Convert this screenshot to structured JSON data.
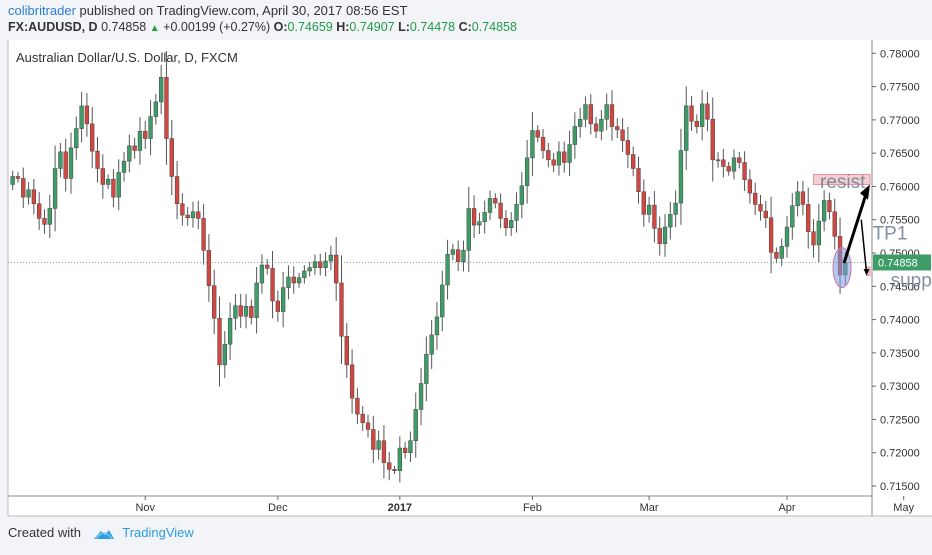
{
  "header": {
    "author": "colibritrader",
    "published_text": "published on TradingView.com, April 30, 2017 08:56 EST",
    "symbol": "FX:AUDUSD, D",
    "last": "0.74858",
    "change": "+0.00199 (+0.27%)",
    "o_label": "O:",
    "o_value": "0.74659",
    "h_label": "H:",
    "h_value": "0.74907",
    "l_label": "L:",
    "l_value": "0.74478",
    "c_label": "C:",
    "c_value": "0.74858"
  },
  "footer": {
    "created_with": "Created with",
    "brand": "TradingView"
  },
  "colors": {
    "up": "#3e9d67",
    "down": "#d2473f",
    "zone_fill": "#f3c4c8",
    "zone_stroke": "#e8909a",
    "last_price_bg": "#3e9d67",
    "brand": "#2b9de0"
  },
  "chart_data": {
    "type": "candlestick",
    "title": "Australian Dollar/U.S. Dollar, D, FXCM",
    "ylim": [
      0.7135,
      0.782
    ],
    "y_ticks": [
      "0.78000",
      "0.77500",
      "0.77000",
      "0.76500",
      "0.76000",
      "0.75500",
      "0.75000",
      "0.74500",
      "0.74000",
      "0.73500",
      "0.73000",
      "0.72500",
      "0.72000",
      "0.71500"
    ],
    "x_ticks": [
      "Nov",
      "Dec",
      "2017",
      "Feb",
      "Mar",
      "Apr",
      "May"
    ],
    "last_price_label": "0.74858",
    "candles_close": [
      0.7615,
      0.7612,
      0.7584,
      0.7595,
      0.7574,
      0.7552,
      0.7543,
      0.7567,
      0.7627,
      0.7652,
      0.7612,
      0.7658,
      0.7687,
      0.7721,
      0.7694,
      0.7653,
      0.7627,
      0.7603,
      0.7611,
      0.7584,
      0.7621,
      0.7638,
      0.7661,
      0.7654,
      0.7683,
      0.7672,
      0.7705,
      0.7727,
      0.7764,
      0.7672,
      0.7615,
      0.7574,
      0.7557,
      0.7553,
      0.7562,
      0.7552,
      0.7504,
      0.7451,
      0.7402,
      0.7332,
      0.7363,
      0.7402,
      0.7421,
      0.7405,
      0.742,
      0.7403,
      0.7455,
      0.7482,
      0.7477,
      0.7428,
      0.7412,
      0.7448,
      0.7464,
      0.7455,
      0.7463,
      0.7473,
      0.7478,
      0.7487,
      0.7478,
      0.7488,
      0.7497,
      0.7455,
      0.7375,
      0.7332,
      0.7282,
      0.7258,
      0.7245,
      0.7235,
      0.7205,
      0.7218,
      0.7185,
      0.7175,
      0.7173,
      0.7207,
      0.72,
      0.7218,
      0.7265,
      0.7304,
      0.7348,
      0.7377,
      0.7404,
      0.7452,
      0.7498,
      0.7505,
      0.7487,
      0.7504,
      0.7567,
      0.7542,
      0.7547,
      0.7561,
      0.7582,
      0.7575,
      0.7552,
      0.7538,
      0.7549,
      0.7573,
      0.7601,
      0.7643,
      0.7684,
      0.7674,
      0.7654,
      0.764,
      0.7632,
      0.7652,
      0.7636,
      0.7663,
      0.769,
      0.7701,
      0.7723,
      0.7694,
      0.7683,
      0.7701,
      0.7723,
      0.769,
      0.7685,
      0.7669,
      0.7648,
      0.7627,
      0.7592,
      0.7558,
      0.7572,
      0.7537,
      0.7514,
      0.7539,
      0.7558,
      0.7575,
      0.7654,
      0.7721,
      0.7698,
      0.769,
      0.7724,
      0.7701,
      0.764,
      0.764,
      0.763,
      0.7623,
      0.7643,
      0.7636,
      0.761,
      0.759,
      0.7573,
      0.7563,
      0.7553,
      0.7501,
      0.7492,
      0.751,
      0.7539,
      0.7571,
      0.7592,
      0.7573,
      0.7532,
      0.7512,
      0.7548,
      0.7579,
      0.7562,
      0.7525,
      0.7467,
      0.7486
    ],
    "zones": [
      {
        "name": "resistance",
        "from": 0.7603,
        "to": 0.7618,
        "label": "resist"
      },
      {
        "name": "support",
        "from": 0.7466,
        "to": 0.7479,
        "label": "support"
      }
    ],
    "annotations": [
      "TP1"
    ]
  }
}
